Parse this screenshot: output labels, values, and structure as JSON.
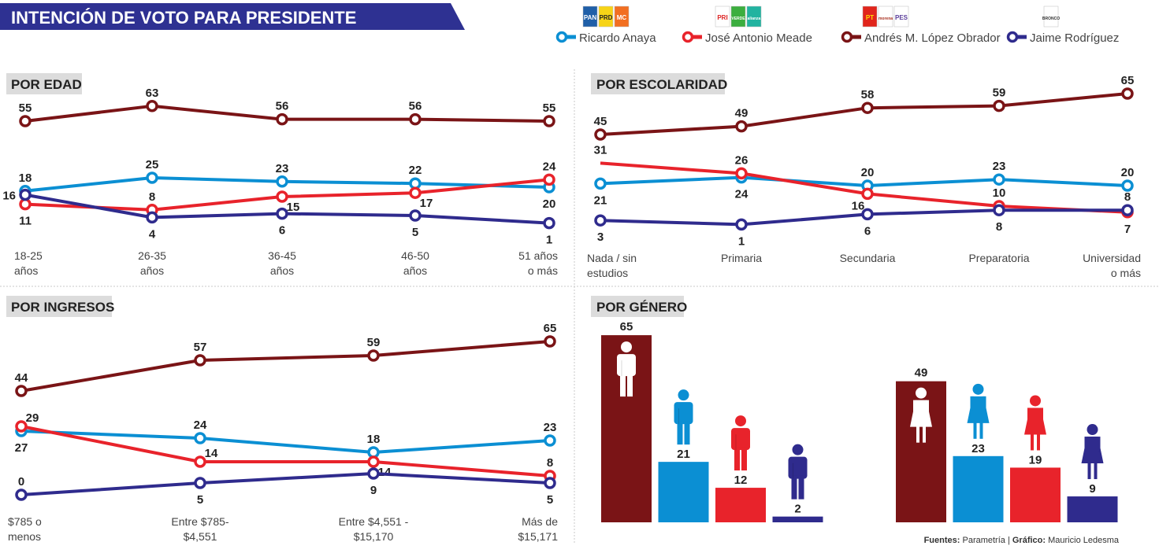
{
  "title": "INTENCIÓN DE VOTO PARA PRESIDENTE",
  "legend": {
    "candidates": [
      {
        "name": "Ricardo Anaya",
        "color": "#0b8fd3",
        "logos": [
          {
            "text": "PAN",
            "bg": "#1f5fa8",
            "fg": "#fff"
          },
          {
            "text": "PRD",
            "bg": "#f7d417",
            "fg": "#222"
          },
          {
            "text": "MC",
            "bg": "#f26f21",
            "fg": "#fff"
          }
        ]
      },
      {
        "name": "José Antonio Meade",
        "color": "#e8232b",
        "logos": [
          {
            "text": "PRI",
            "bg": "#fff",
            "fg": "#d22"
          },
          {
            "text": "VERDE",
            "bg": "#3cae3f",
            "fg": "#fff"
          },
          {
            "text": "alianza",
            "bg": "#22b3a0",
            "fg": "#fff"
          }
        ]
      },
      {
        "name": "Andrés M. López Obrador",
        "color": "#7a1416",
        "logos": [
          {
            "text": "PT",
            "bg": "#e1251b",
            "fg": "#ffde00"
          },
          {
            "text": "morena",
            "bg": "#fff",
            "fg": "#a32"
          },
          {
            "text": "PES",
            "bg": "#fff",
            "fg": "#5a3d9a"
          }
        ]
      },
      {
        "name": "Jaime Rodríguez",
        "color": "#2f2b8d",
        "logos": [
          {
            "text": "BRONCO",
            "bg": "#fff",
            "fg": "#333"
          }
        ]
      }
    ]
  },
  "sections": {
    "edad": "POR EDAD",
    "escolaridad": "POR ESCOLARIDAD",
    "ingresos": "POR INGRESOS",
    "genero": "POR GÉNERO"
  },
  "footer": {
    "sources_label": "Fuentes:",
    "sources": "Parametría |",
    "graphic_label": "Gráfico:",
    "graphic": "Mauricio Ledesma"
  },
  "chart_data": [
    {
      "type": "line",
      "section": "POR EDAD",
      "categories": [
        [
          "18-25",
          "años"
        ],
        [
          "26-35",
          "años"
        ],
        [
          "36-45",
          "años"
        ],
        [
          "46-50",
          "años"
        ],
        [
          "51 años",
          "o más"
        ]
      ],
      "series": [
        {
          "name": "Ricardo Anaya",
          "values": [
            18,
            25,
            23,
            22,
            20
          ]
        },
        {
          "name": "José Antonio Meade",
          "values": [
            11,
            8,
            15,
            17,
            24
          ]
        },
        {
          "name": "Andrés M. López Obrador",
          "values": [
            55,
            63,
            56,
            56,
            55
          ]
        },
        {
          "name": "Jaime Rodríguez",
          "values": [
            16,
            4,
            6,
            5,
            1
          ]
        }
      ],
      "grid": false
    },
    {
      "type": "line",
      "section": "POR ESCOLARIDAD",
      "categories": [
        [
          "Nada / sin",
          "estudios"
        ],
        [
          "Primaria"
        ],
        [
          "Secundaria"
        ],
        [
          "Preparatoria"
        ],
        [
          "Universidad",
          "o más"
        ]
      ],
      "series": [
        {
          "name": "Ricardo Anaya",
          "values": [
            21,
            24,
            20,
            23,
            20
          ]
        },
        {
          "name": "José Antonio Meade",
          "values": [
            31,
            26,
            16,
            10,
            7
          ]
        },
        {
          "name": "Andrés M. López Obrador",
          "values": [
            45,
            49,
            58,
            59,
            65
          ]
        },
        {
          "name": "Jaime Rodríguez",
          "values": [
            3,
            1,
            6,
            8,
            8
          ]
        }
      ],
      "grid": false
    },
    {
      "type": "line",
      "section": "POR INGRESOS",
      "categories": [
        [
          "$785 o",
          "menos"
        ],
        [
          "Entre $785-",
          "$4,551"
        ],
        [
          "Entre $4,551 -",
          "$15,170"
        ],
        [
          "Más de",
          "$15,171"
        ]
      ],
      "series": [
        {
          "name": "Ricardo Anaya",
          "values": [
            27,
            24,
            18,
            23
          ]
        },
        {
          "name": "José Antonio Meade",
          "values": [
            29,
            14,
            14,
            8
          ]
        },
        {
          "name": "Andrés M. López Obrador",
          "values": [
            44,
            57,
            59,
            65
          ]
        },
        {
          "name": "Jaime Rodríguez",
          "values": [
            0,
            5,
            9,
            5
          ]
        }
      ],
      "grid": false
    },
    {
      "type": "bar",
      "section": "POR GÉNERO",
      "groups": [
        {
          "icon": "man-icon",
          "values": [
            65,
            21,
            12,
            2
          ]
        },
        {
          "icon": "woman-icon",
          "values": [
            49,
            23,
            19,
            9
          ]
        }
      ],
      "series_order": [
        "Andrés M. López Obrador",
        "Ricardo Anaya",
        "José Antonio Meade",
        "Jaime Rodríguez"
      ],
      "grid": false
    }
  ]
}
